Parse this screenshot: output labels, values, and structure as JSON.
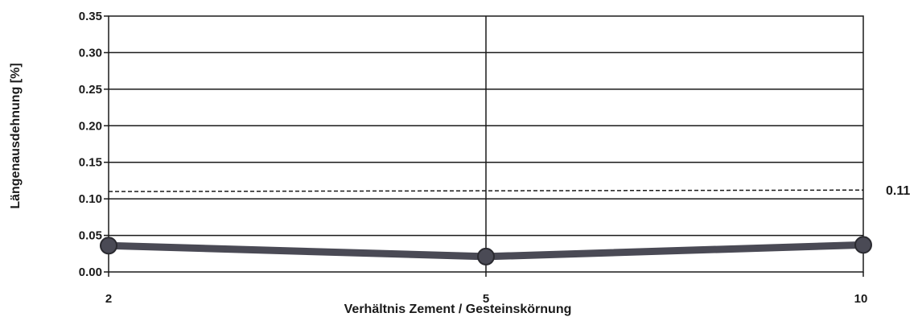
{
  "chart_data": {
    "type": "line",
    "title": "",
    "xlabel": "Verhältnis Zement / Gesteinskörnung",
    "ylabel": "Längenausdehnung [%]",
    "categories": [
      "2",
      "5",
      "10"
    ],
    "series": [
      {
        "values": [
          0.036,
          0.021,
          0.037
        ],
        "color": "#4a4a55"
      }
    ],
    "reference_line": {
      "label": "0.11",
      "start": 0.11,
      "end": 0.112,
      "style": "dashed"
    },
    "ylim": [
      0,
      0.35
    ],
    "yticks": [
      "0.00",
      "0.05",
      "0.10",
      "0.15",
      "0.20",
      "0.25",
      "0.30",
      "0.35"
    ],
    "grid": true,
    "legend": "none"
  }
}
